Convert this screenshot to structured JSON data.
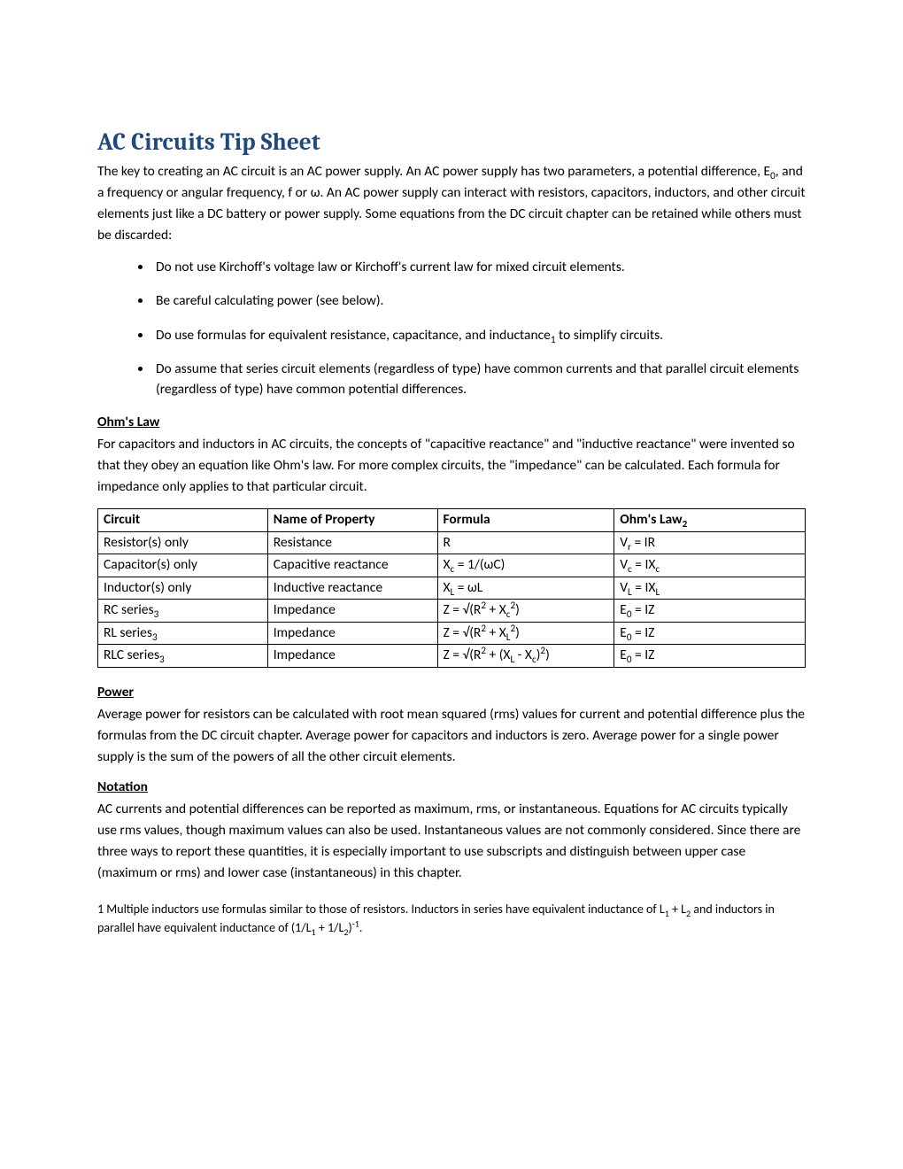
{
  "title": "AC Circuits Tip Sheet",
  "intro": "The key to creating an AC circuit is an AC power supply. An AC power supply has two parameters, a potential difference, E₀, and a frequency or angular frequency, f or ω. An AC power supply can interact with resistors, capacitors, inductors, and other circuit elements just like a DC battery or power supply. Some equations from the DC circuit chapter can be retained while others must be discarded:",
  "bullets": [
    "Do not use Kirchoff's voltage law or Kirchoff's current law for mixed circuit elements.",
    "Be careful calculating power (see below).",
    "Do use formulas for equivalent resistance, capacitance, and inductance₁ to simplify circuits.",
    "Do assume that series circuit elements (regardless of type) have common currents and that parallel circuit elements (regardless of type) have common potential differences."
  ],
  "ohms_law": {
    "heading": "Ohm's Law",
    "text": "For capacitors and inductors in AC circuits, the concepts of \"capacitive reactance\" and \"inductive reactance\" were invented so that they obey an equation like Ohm's law. For more complex circuits, the \"impedance\" can be calculated. Each formula for impedance only applies to that particular circuit."
  },
  "table": {
    "headers": {
      "circuit": "Circuit",
      "property": "Name of Property",
      "formula": "Formula",
      "ohm": "Ohm's Law₂"
    },
    "rows": [
      {
        "circuit": "Resistor(s) only",
        "property": "Resistance",
        "formula": "R",
        "ohm": "Vᵣ = IR"
      },
      {
        "circuit": "Capacitor(s) only",
        "property": "Capacitive reactance",
        "formula": "X꜀ = 1/(ωC)",
        "ohm": "V꜀ = IX꜀"
      },
      {
        "circuit": "Inductor(s) only",
        "property": "Inductive reactance",
        "formula": "Xₗ = ωL",
        "ohm": "Vₗ = IXₗ"
      },
      {
        "circuit": "RC series₃",
        "property": "Impedance",
        "formula": "Z = √(R² + X꜀²)",
        "ohm": "E₀ = IZ"
      },
      {
        "circuit": "RL series₃",
        "property": "Impedance",
        "formula": "Z = √(R² + Xₗ²)",
        "ohm": "E₀ = IZ"
      },
      {
        "circuit": "RLC series₃",
        "property": "Impedance",
        "formula": "Z = √(R² + (Xₗ - X꜀)²)",
        "ohm": "E₀ = IZ"
      }
    ]
  },
  "power": {
    "heading": "Power",
    "text": "Average power for resistors can be calculated with root mean squared (rms) values for current and potential difference plus the formulas from the DC circuit chapter. Average power for capacitors and inductors is zero. Average power for a single power supply is the sum of the powers of all the other circuit elements."
  },
  "notation": {
    "heading": "Notation",
    "text": "AC currents and potential differences can be reported as maximum, rms, or instantaneous. Equations for AC circuits typically use rms values, though maximum values can also be used.  Instantaneous values are not commonly considered. Since there are three ways to report these quantities, it is especially important to use subscripts and distinguish between upper case (maximum or rms) and lower case (instantaneous) in this chapter."
  },
  "footnote1": "1 Multiple inductors use formulas similar to those of resistors. Inductors in series have equivalent inductance of L₁ + L₂ and inductors in parallel have equivalent inductance of (1/L₁ + 1/L₂)⁻¹."
}
